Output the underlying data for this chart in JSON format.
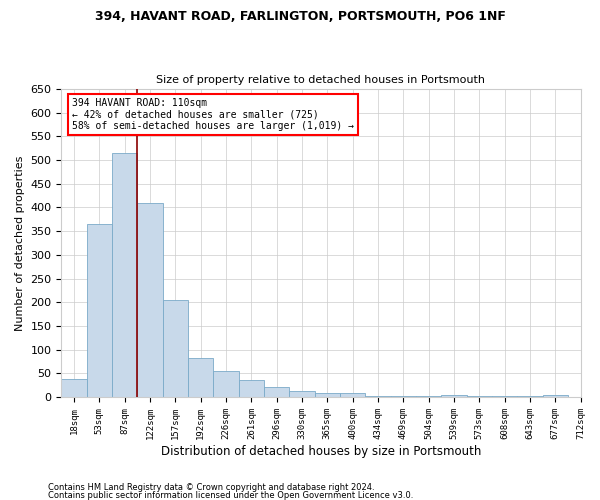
{
  "title1": "394, HAVANT ROAD, FARLINGTON, PORTSMOUTH, PO6 1NF",
  "title2": "Size of property relative to detached houses in Portsmouth",
  "xlabel": "Distribution of detached houses by size in Portsmouth",
  "ylabel": "Number of detached properties",
  "bar_values": [
    37,
    365,
    515,
    410,
    205,
    82,
    55,
    35,
    22,
    12,
    8,
    8,
    3,
    3,
    1,
    5,
    1,
    3,
    1,
    5
  ],
  "bar_labels": [
    "18sqm",
    "53sqm",
    "87sqm",
    "122sqm",
    "157sqm",
    "192sqm",
    "226sqm",
    "261sqm",
    "296sqm",
    "330sqm",
    "365sqm",
    "400sqm",
    "434sqm",
    "469sqm",
    "504sqm",
    "539sqm",
    "573sqm",
    "608sqm",
    "643sqm",
    "677sqm",
    "712sqm"
  ],
  "bar_color": "#c8d9ea",
  "bar_edge_color": "#7aaac8",
  "bar_width": 1.0,
  "vline_x": 2.5,
  "vline_color": "#8b0000",
  "annotation_line1": "394 HAVANT ROAD: 110sqm",
  "annotation_line2": "← 42% of detached houses are smaller (725)",
  "annotation_line3": "58% of semi-detached houses are larger (1,019) →",
  "ylim": [
    0,
    650
  ],
  "yticks": [
    0,
    50,
    100,
    150,
    200,
    250,
    300,
    350,
    400,
    450,
    500,
    550,
    600,
    650
  ],
  "background_color": "white",
  "grid_color": "#cccccc",
  "footnote1": "Contains HM Land Registry data © Crown copyright and database right 2024.",
  "footnote2": "Contains public sector information licensed under the Open Government Licence v3.0."
}
